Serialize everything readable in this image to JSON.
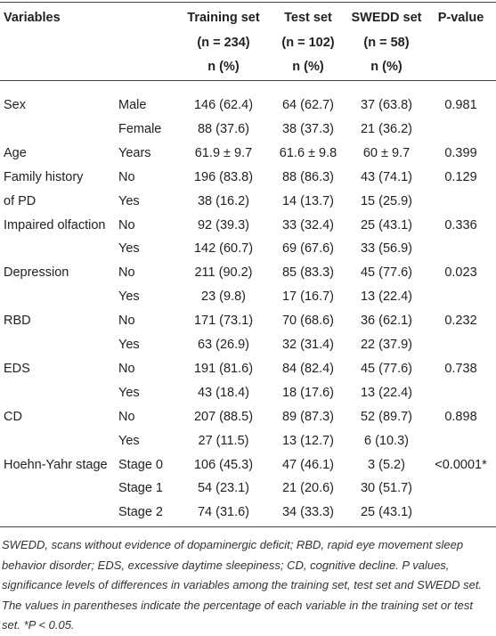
{
  "table": {
    "header": [
      [
        "Variables",
        null,
        "Training set",
        "Test set",
        "SWEDD set",
        "P-value"
      ],
      [
        null,
        null,
        "(n = 234)",
        "(n = 102)",
        "(n = 58)",
        null
      ],
      [
        null,
        null,
        "n (%)",
        "n (%)",
        "n (%)",
        null
      ]
    ],
    "rows": [
      [
        "Sex",
        "Male",
        "146 (62.4)",
        "64 (62.7)",
        "37 (63.8)",
        "0.981"
      ],
      [
        null,
        "Female",
        "88 (37.6)",
        "38 (37.3)",
        "21 (36.2)",
        null
      ],
      [
        "Age",
        "Years",
        "61.9 ± 9.7",
        "61.6 ± 9.8",
        "60 ± 9.7",
        "0.399"
      ],
      [
        "Family history",
        "No",
        "196 (83.8)",
        "88 (86.3)",
        "43 (74.1)",
        "0.129"
      ],
      [
        "of PD",
        "Yes",
        "38 (16.2)",
        "14 (13.7)",
        "15 (25.9)",
        null
      ],
      [
        "Impaired olfaction",
        "No",
        "92 (39.3)",
        "33 (32.4)",
        "25 (43.1)",
        "0.336"
      ],
      [
        null,
        "Yes",
        "142 (60.7)",
        "69 (67.6)",
        "33 (56.9)",
        null
      ],
      [
        "Depression",
        "No",
        "211 (90.2)",
        "85 (83.3)",
        "45 (77.6)",
        "0.023"
      ],
      [
        null,
        "Yes",
        "23 (9.8)",
        "17 (16.7)",
        "13 (22.4)",
        null
      ],
      [
        "RBD",
        "No",
        "171 (73.1)",
        "70 (68.6)",
        "36 (62.1)",
        "0.232"
      ],
      [
        null,
        "Yes",
        "63 (26.9)",
        "32 (31.4)",
        "22 (37.9)",
        null
      ],
      [
        "EDS",
        "No",
        "191 (81.6)",
        "84 (82.4)",
        "45 (77.6)",
        "0.738"
      ],
      [
        null,
        "Yes",
        "43 (18.4)",
        "18 (17.6)",
        "13 (22.4)",
        null
      ],
      [
        "CD",
        "No",
        "207 (88.5)",
        "89 (87.3)",
        "52 (89.7)",
        "0.898"
      ],
      [
        null,
        "Yes",
        "27 (11.5)",
        "13 (12.7)",
        "6 (10.3)",
        null
      ],
      [
        "Hoehn-Yahr stage",
        "Stage 0",
        "106 (45.3)",
        "47 (46.1)",
        "3 (5.2)",
        "<0.0001*"
      ],
      [
        null,
        "Stage 1",
        "54 (23.1)",
        "21 (20.6)",
        "30 (51.7)",
        null
      ],
      [
        null,
        "Stage 2",
        "74 (31.6)",
        "34 (33.3)",
        "25 (43.1)",
        null
      ]
    ],
    "footnote": "SWEDD, scans without evidence of dopaminergic deficit; RBD, rapid eye movement sleep behavior disorder; EDS, excessive daytime sleepiness; CD, cognitive decline. P values, significance levels of differences in variables among the training set, test set and SWEDD set. The values in parentheses indicate the percentage of each variable in the training set or test set. *P < 0.05."
  }
}
